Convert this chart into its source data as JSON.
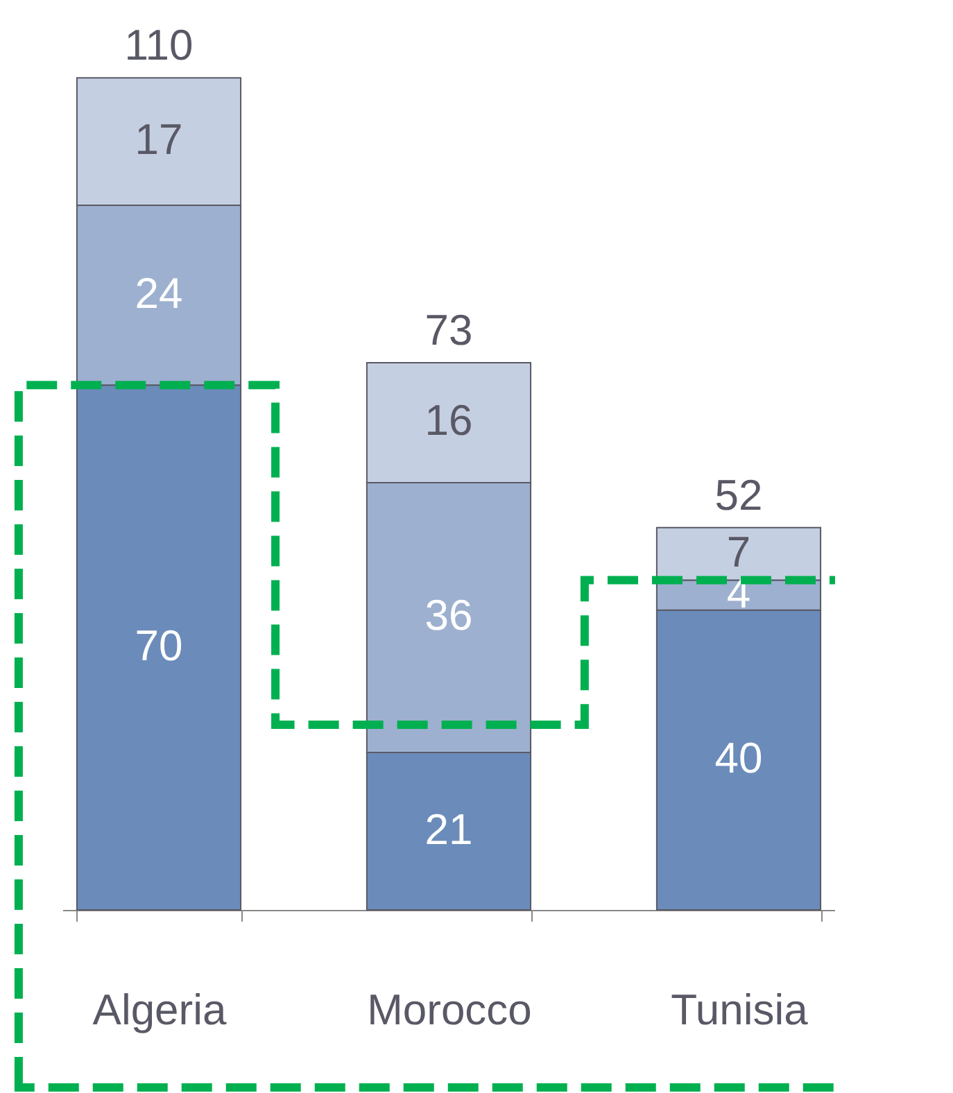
{
  "chart_data": {
    "type": "bar",
    "stacked": true,
    "categories": [
      "Algeria",
      "Morocco",
      "Tunisia"
    ],
    "series": [
      {
        "color": "#6b8cba",
        "values": [
          70,
          21,
          40
        ]
      },
      {
        "color": "#9db0cf",
        "values": [
          24,
          36,
          4
        ]
      },
      {
        "color": "#c5cfe2",
        "values": [
          17,
          16,
          7
        ]
      }
    ],
    "totals": [
      "110",
      "73",
      "52"
    ],
    "data_labels": true
  }
}
